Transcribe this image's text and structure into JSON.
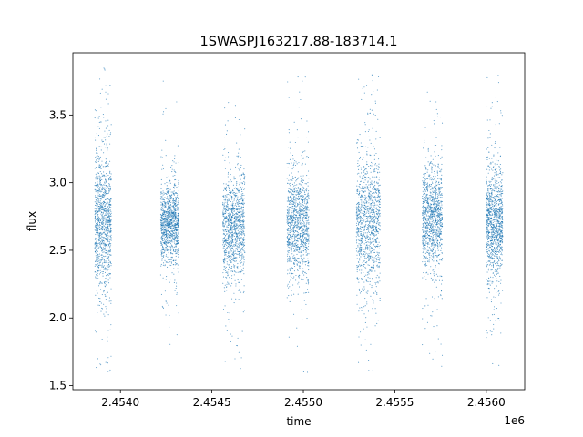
{
  "chart_data": {
    "type": "scatter",
    "title": "1SWASPJ163217.88-183714.1",
    "xlabel": "time",
    "ylabel": "flux",
    "x_offset_label": "1e6",
    "xlim": [
      2.45374,
      2.45621
    ],
    "ylim": [
      1.47,
      3.96
    ],
    "grid": false,
    "legend": "none",
    "x_ticks": [
      2.454,
      2.4545,
      2.455,
      2.4555,
      2.456
    ],
    "x_tick_labels": [
      "2.4540",
      "2.4545",
      "2.4550",
      "2.4555",
      "2.4560"
    ],
    "y_ticks": [
      1.5,
      2.0,
      2.5,
      3.0,
      3.5
    ],
    "y_tick_labels": [
      "1.5",
      "2.0",
      "2.5",
      "3.0",
      "3.5"
    ],
    "series": [
      {
        "color": "#1f77b4",
        "clusters": [
          {
            "x_range": [
              2.45386,
              2.45395
            ],
            "y_center": 2.72,
            "y_spread": [
              2.2,
              3.4
            ],
            "y_extent": [
              1.6,
              3.85
            ]
          },
          {
            "x_range": [
              2.45422,
              2.45432
            ],
            "y_center": 2.7,
            "y_spread": [
              2.35,
              3.0
            ],
            "y_extent": [
              1.65,
              3.8
            ]
          },
          {
            "x_range": [
              2.45456,
              2.45468
            ],
            "y_center": 2.68,
            "y_spread": [
              2.25,
              3.1
            ],
            "y_extent": [
              1.62,
              3.6
            ]
          },
          {
            "x_range": [
              2.45491,
              2.45503
            ],
            "y_center": 2.7,
            "y_spread": [
              2.3,
              3.2
            ],
            "y_extent": [
              1.58,
              3.82
            ]
          },
          {
            "x_range": [
              2.45529,
              2.45542
            ],
            "y_center": 2.7,
            "y_spread": [
              2.2,
              3.35
            ],
            "y_extent": [
              1.6,
              3.8
            ]
          },
          {
            "x_range": [
              2.45565,
              2.45576
            ],
            "y_center": 2.73,
            "y_spread": [
              2.25,
              3.1
            ],
            "y_extent": [
              1.6,
              3.7
            ]
          },
          {
            "x_range": [
              2.456,
              2.45609
            ],
            "y_center": 2.7,
            "y_spread": [
              2.2,
              3.1
            ],
            "y_extent": [
              1.6,
              3.8
            ]
          }
        ]
      }
    ]
  }
}
